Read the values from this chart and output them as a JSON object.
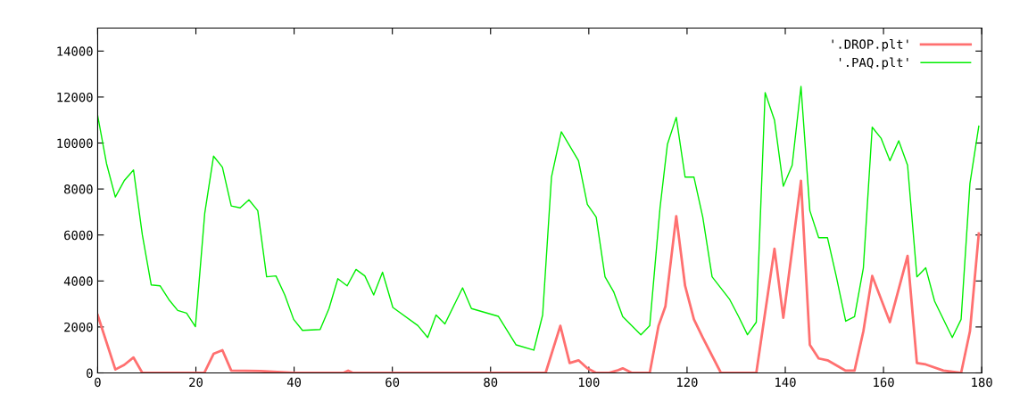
{
  "chart_data": {
    "type": "line",
    "xlim": [
      0,
      180
    ],
    "xticks": [
      0,
      20,
      40,
      60,
      80,
      100,
      120,
      140,
      160,
      180
    ],
    "ylim": [
      0,
      15000
    ],
    "yticks": [
      0,
      2000,
      4000,
      6000,
      8000,
      10000,
      12000,
      14000
    ],
    "legend": "top right",
    "grid": false,
    "marker": "none",
    "line_style": "solid",
    "series": [
      {
        "name": "'.DROP.plt'",
        "color": "#ff7070",
        "x": [
          0,
          3.6,
          5.4,
          7.3,
          9.1,
          21.7,
          23.6,
          25.4,
          27.2,
          33.2,
          40,
          50,
          51,
          52,
          60,
          70,
          80,
          88,
          91.2,
          94.2,
          96.1,
          97.9,
          99.7,
          101.5,
          104,
          105.7,
          106.9,
          108.8,
          112.4,
          114.2,
          115.6,
          117.8,
          119.6,
          121.4,
          123.2,
          126.9,
          134.1,
          137.8,
          139.6,
          141.4,
          143.2,
          145,
          146.8,
          148.6,
          152.3,
          154.1,
          155.9,
          157.7,
          161.3,
          164.9,
          166.8,
          168.6,
          172.2,
          175.8,
          177.6,
          179.4
        ],
        "values": [
          2520,
          150,
          350,
          670,
          0,
          0,
          830,
          990,
          100,
          80,
          0,
          0,
          100,
          0,
          0,
          0,
          0,
          0,
          0,
          2050,
          430,
          550,
          200,
          0,
          0,
          100,
          200,
          0,
          0,
          2050,
          2900,
          6820,
          3790,
          2330,
          1540,
          0,
          0,
          5400,
          2400,
          5360,
          8360,
          1220,
          630,
          550,
          100,
          100,
          1810,
          4220,
          2210,
          5090,
          430,
          370,
          100,
          0,
          1810,
          6070
        ]
      },
      {
        "name": "'.PAQ.plt'",
        "color": "#00ee00",
        "x": [
          0,
          1.8,
          3.6,
          5.4,
          7.3,
          9.1,
          10.9,
          12.7,
          14.5,
          16.3,
          18.1,
          19.9,
          21.8,
          23.6,
          25.4,
          27.2,
          29,
          30.8,
          32.6,
          34.4,
          36.3,
          38.1,
          39.9,
          41.7,
          45.3,
          47.1,
          48.9,
          50.8,
          52.6,
          54.4,
          56.2,
          58,
          60.1,
          65.2,
          67.2,
          68.9,
          70.7,
          74.3,
          76.1,
          81.6,
          85.2,
          88.8,
          90.6,
          92.4,
          94.4,
          97.9,
          99.7,
          101.5,
          103.3,
          105.1,
          106.9,
          110.6,
          112.4,
          114.5,
          116,
          117.8,
          119.6,
          121.4,
          123.2,
          125.1,
          128.7,
          130.5,
          132.3,
          134.1,
          135.9,
          137.8,
          139.6,
          141.4,
          143.2,
          145,
          146.8,
          148.6,
          150.4,
          152.3,
          154.1,
          155.9,
          157.7,
          159.5,
          161.3,
          163.1,
          164.9,
          166.8,
          168.6,
          170.4,
          174,
          175.8,
          177.6,
          179.4
        ],
        "values": [
          11200,
          9110,
          7650,
          8360,
          8830,
          6000,
          3830,
          3790,
          3190,
          2720,
          2600,
          2010,
          6940,
          9430,
          8950,
          7260,
          7180,
          7530,
          7060,
          4180,
          4220,
          3390,
          2330,
          1850,
          1890,
          2800,
          4100,
          3790,
          4500,
          4220,
          3390,
          4380,
          2850,
          2060,
          1540,
          2520,
          2130,
          3700,
          2800,
          2460,
          1220,
          990,
          2520,
          8520,
          10490,
          9230,
          7330,
          6780,
          4180,
          3510,
          2450,
          1660,
          2050,
          7180,
          9940,
          11120,
          8520,
          8520,
          6780,
          4180,
          3190,
          2450,
          1660,
          2210,
          12190,
          11000,
          8120,
          9030,
          12460,
          7060,
          5880,
          5880,
          4180,
          2250,
          2450,
          4570,
          10690,
          10210,
          9230,
          10100,
          9030,
          4180,
          4570,
          3120,
          1540,
          2330,
          8240,
          10730
        ]
      }
    ]
  }
}
